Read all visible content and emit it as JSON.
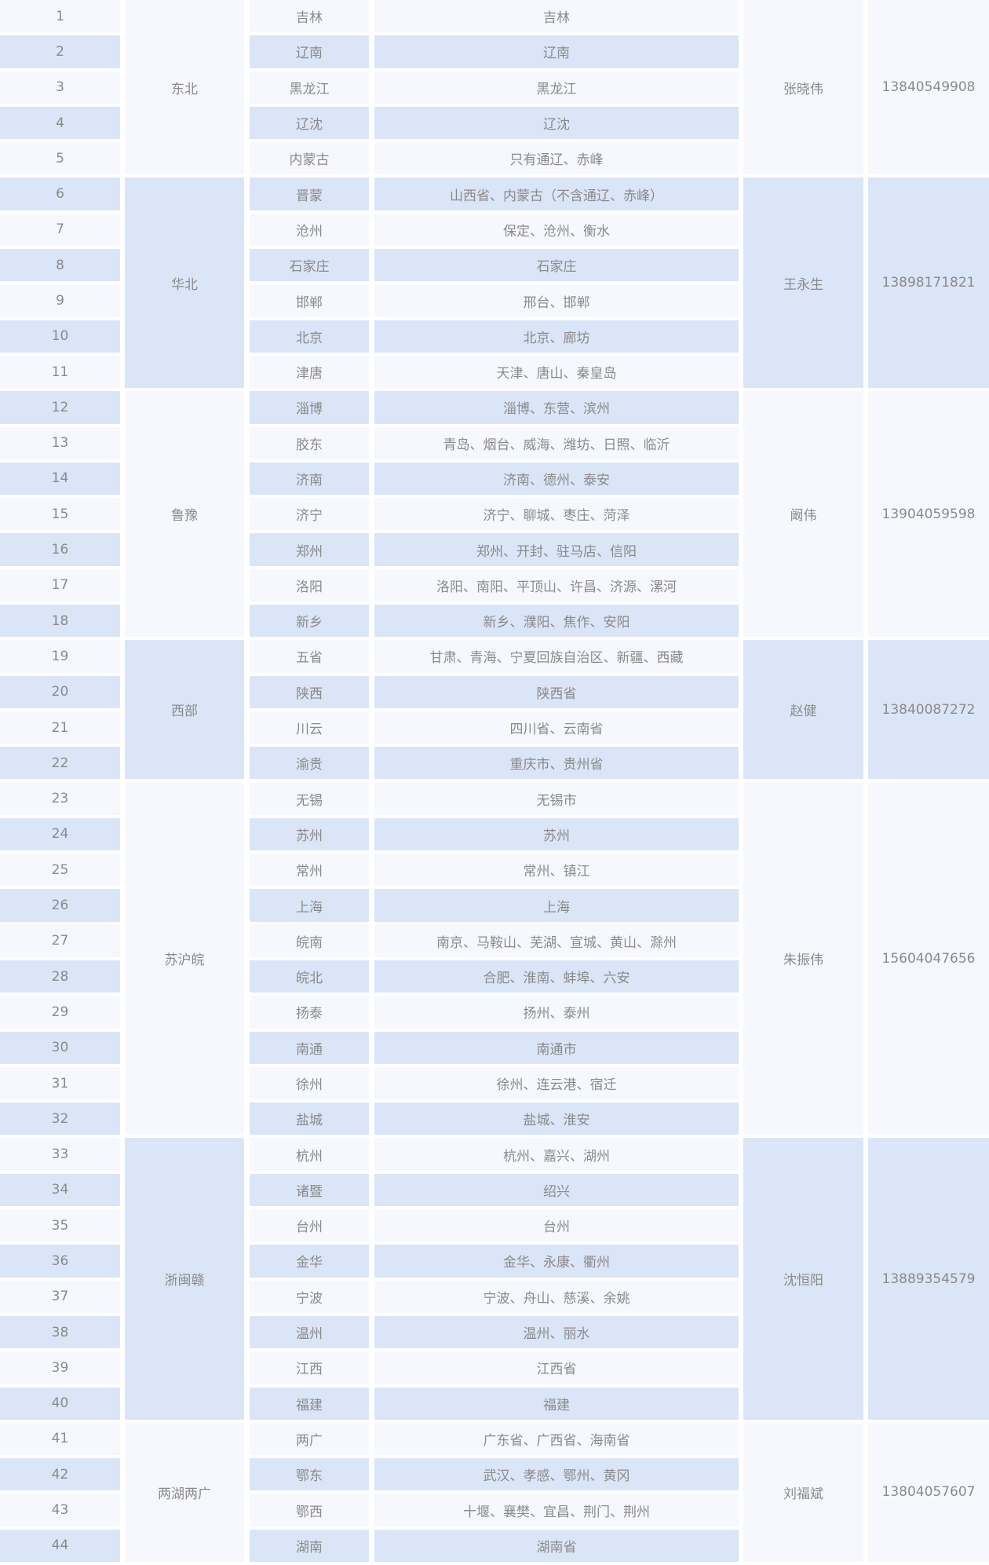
{
  "groups": [
    {
      "region": "东北",
      "manager": "张晓伟",
      "phone": "13840549908",
      "rows": [
        {
          "no": 1,
          "area": "吉林",
          "cities": "吉林"
        },
        {
          "no": 2,
          "area": "辽南",
          "cities": "辽南"
        },
        {
          "no": 3,
          "area": "黑龙江",
          "cities": "黑龙江"
        },
        {
          "no": 4,
          "area": "辽沈",
          "cities": "辽沈"
        },
        {
          "no": 5,
          "area": "内蒙古",
          "cities": "只有通辽、赤峰"
        }
      ]
    },
    {
      "region": "华北",
      "manager": "王永生",
      "phone": "13898171821",
      "rows": [
        {
          "no": 6,
          "area": "晋蒙",
          "cities": "山西省、内蒙古（不含通辽、赤峰）"
        },
        {
          "no": 7,
          "area": "沧州",
          "cities": "保定、沧州、衡水"
        },
        {
          "no": 8,
          "area": "石家庄",
          "cities": "石家庄"
        },
        {
          "no": 9,
          "area": "邯郸",
          "cities": "邢台、邯郸"
        },
        {
          "no": 10,
          "area": "北京",
          "cities": "北京、廊坊"
        },
        {
          "no": 11,
          "area": "津唐",
          "cities": "天津、唐山、秦皇岛"
        }
      ]
    },
    {
      "region": "鲁豫",
      "manager": "阚伟",
      "phone": "13904059598",
      "rows": [
        {
          "no": 12,
          "area": "淄博",
          "cities": "淄博、东营、滨州"
        },
        {
          "no": 13,
          "area": "胶东",
          "cities": "青岛、烟台、威海、潍坊、日照、临沂"
        },
        {
          "no": 14,
          "area": "济南",
          "cities": "济南、德州、泰安"
        },
        {
          "no": 15,
          "area": "济宁",
          "cities": "济宁、聊城、枣庄、菏泽"
        },
        {
          "no": 16,
          "area": "郑州",
          "cities": "郑州、开封、驻马店、信阳"
        },
        {
          "no": 17,
          "area": "洛阳",
          "cities": "洛阳、南阳、平顶山、许昌、济源、漯河"
        },
        {
          "no": 18,
          "area": "新乡",
          "cities": "新乡、濮阳、焦作、安阳"
        }
      ]
    },
    {
      "region": "西部",
      "manager": "赵健",
      "phone": "13840087272",
      "rows": [
        {
          "no": 19,
          "area": "五省",
          "cities": "甘肃、青海、宁夏回族自治区、新疆、西藏"
        },
        {
          "no": 20,
          "area": "陕西",
          "cities": "陕西省"
        },
        {
          "no": 21,
          "area": "川云",
          "cities": "四川省、云南省"
        },
        {
          "no": 22,
          "area": "渝贵",
          "cities": "重庆市、贵州省"
        }
      ]
    },
    {
      "region": "苏沪皖",
      "manager": "朱振伟",
      "phone": "15604047656",
      "rows": [
        {
          "no": 23,
          "area": "无锡",
          "cities": "无锡市"
        },
        {
          "no": 24,
          "area": "苏州",
          "cities": "苏州"
        },
        {
          "no": 25,
          "area": "常州",
          "cities": "常州、镇江"
        },
        {
          "no": 26,
          "area": "上海",
          "cities": "上海"
        },
        {
          "no": 27,
          "area": "皖南",
          "cities": "南京、马鞍山、芜湖、宣城、黄山、滁州"
        },
        {
          "no": 28,
          "area": "皖北",
          "cities": "合肥、淮南、蚌埠、六安"
        },
        {
          "no": 29,
          "area": "扬泰",
          "cities": "扬州、泰州"
        },
        {
          "no": 30,
          "area": "南通",
          "cities": "南通市"
        },
        {
          "no": 31,
          "area": "徐州",
          "cities": "徐州、连云港、宿迁"
        },
        {
          "no": 32,
          "area": "盐城",
          "cities": "盐城、淮安"
        }
      ]
    },
    {
      "region": "浙闽赣",
      "manager": "沈恒阳",
      "phone": "13889354579",
      "rows": [
        {
          "no": 33,
          "area": "杭州",
          "cities": "杭州、嘉兴、湖州"
        },
        {
          "no": 34,
          "area": "诸暨",
          "cities": "绍兴"
        },
        {
          "no": 35,
          "area": "台州",
          "cities": "台州"
        },
        {
          "no": 36,
          "area": "金华",
          "cities": "金华、永康、衢州"
        },
        {
          "no": 37,
          "area": "宁波",
          "cities": "宁波、舟山、慈溪、余姚"
        },
        {
          "no": 38,
          "area": "温州",
          "cities": "温州、丽水"
        },
        {
          "no": 39,
          "area": "江西",
          "cities": "江西省"
        },
        {
          "no": 40,
          "area": "福建",
          "cities": "福建"
        }
      ]
    },
    {
      "region": "两湖两广",
      "manager": "刘福斌",
      "phone": "13804057607",
      "rows": [
        {
          "no": 41,
          "area": "两广",
          "cities": "广东省、广西省、海南省"
        },
        {
          "no": 42,
          "area": "鄂东",
          "cities": "武汉、孝感、鄂州、黄冈"
        },
        {
          "no": 43,
          "area": "鄂西",
          "cities": "十堰、襄樊、宜昌、荆门、荆州"
        },
        {
          "no": 44,
          "area": "湖南",
          "cities": "湖南省"
        }
      ]
    }
  ]
}
